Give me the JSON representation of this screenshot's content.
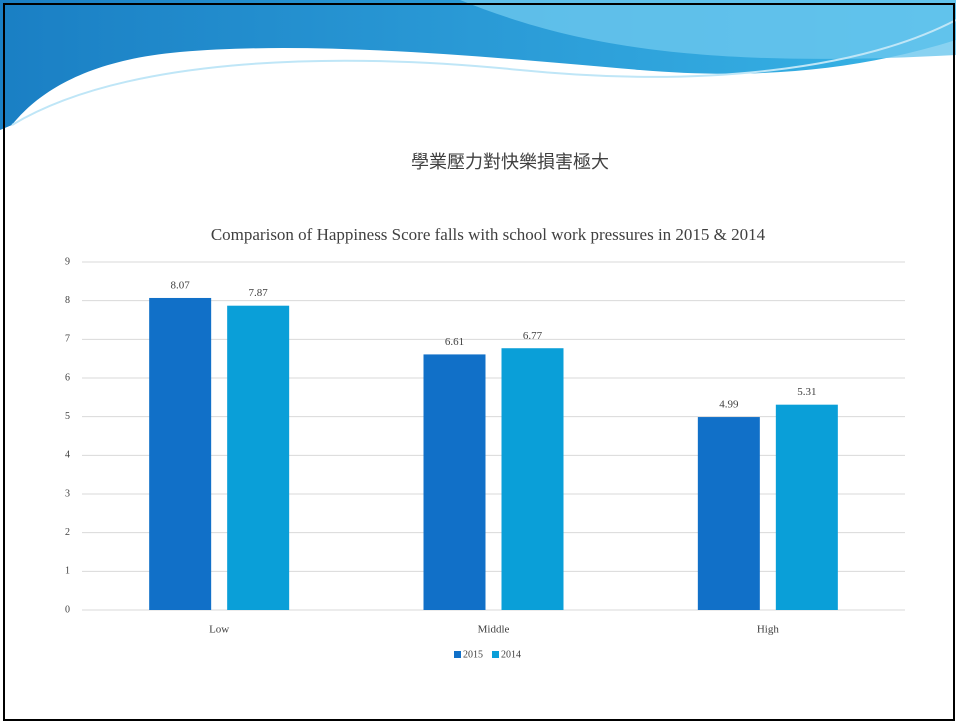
{
  "slide_title": "學業壓力對快樂損害極大",
  "chart_data": {
    "type": "bar",
    "title": "Comparison of Happiness Score falls with school work pressures in 2015 & 2014",
    "categories": [
      "Low",
      "Middle",
      "High"
    ],
    "series": [
      {
        "name": "2015",
        "color": "#1170c8",
        "values": [
          8.07,
          6.61,
          4.99
        ]
      },
      {
        "name": "2014",
        "color": "#0a9fd8",
        "values": [
          7.87,
          6.77,
          5.31
        ]
      }
    ],
    "ylim": [
      0,
      9
    ],
    "yticks": [
      0,
      1,
      2,
      3,
      4,
      5,
      6,
      7,
      8,
      9
    ],
    "grid": true,
    "legend": "bottom"
  }
}
